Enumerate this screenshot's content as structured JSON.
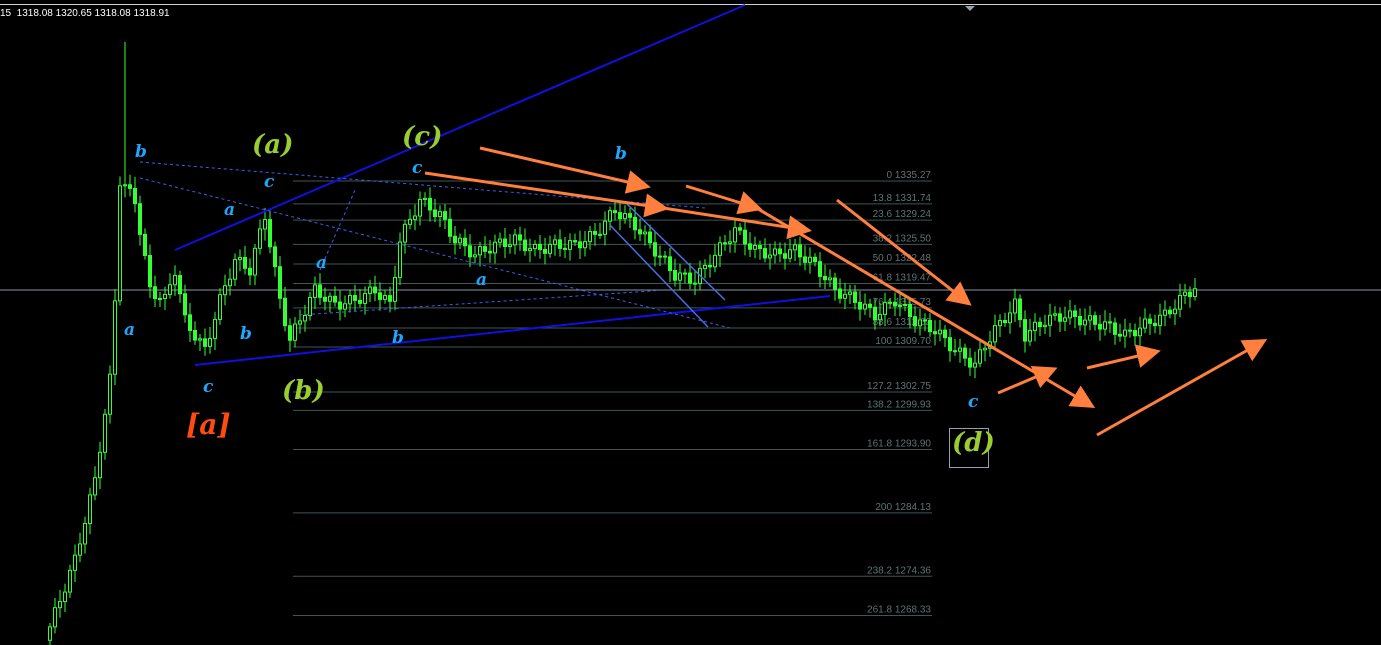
{
  "header": {
    "ohlc": "15  1318.08 1320.65 1318.08 1318.91"
  },
  "colors": {
    "background": "#000000",
    "candle": "#33ff33",
    "fib_line": "#3e5656",
    "trend_line": "#1010e0",
    "channel": "#4a6fe0",
    "arrow": "#ff7f3f",
    "wave_small": "#1ea7ff",
    "wave_mid": "#9acd32",
    "wave_big": "#ff4a12",
    "price_line": "#8a96a6"
  },
  "chart_data": {
    "type": "candlestick",
    "title": "",
    "current_price": 1318.91,
    "price_range": [
      1264,
      1357
    ],
    "closes_by_bar": [
      [
        0,
        1264.5
      ],
      [
        6,
        1276.9
      ],
      [
        10,
        1289.2
      ],
      [
        13,
        1304.6
      ],
      [
        14,
        1316.9
      ],
      [
        15,
        1335.4
      ],
      [
        18,
        1332.3
      ],
      [
        21,
        1318.5
      ],
      [
        24,
        1316.9
      ],
      [
        26,
        1321.6
      ],
      [
        28,
        1313.8
      ],
      [
        32,
        1309.2
      ],
      [
        35,
        1316.9
      ],
      [
        38,
        1323.1
      ],
      [
        41,
        1321.6
      ],
      [
        44,
        1330.0
      ],
      [
        47,
        1316.9
      ],
      [
        49,
        1310.8
      ],
      [
        52,
        1315.4
      ],
      [
        54,
        1318.5
      ],
      [
        58,
        1316.2
      ],
      [
        62,
        1316.9
      ],
      [
        66,
        1318.5
      ],
      [
        69,
        1316.2
      ],
      [
        71,
        1326.2
      ],
      [
        75,
        1332.3
      ],
      [
        79,
        1330.0
      ],
      [
        82,
        1326.2
      ],
      [
        86,
        1323.9
      ],
      [
        90,
        1325.4
      ],
      [
        94,
        1326.2
      ],
      [
        98,
        1324.6
      ],
      [
        102,
        1325.4
      ],
      [
        106,
        1325.4
      ],
      [
        110,
        1327.0
      ],
      [
        114,
        1330.8
      ],
      [
        118,
        1328.5
      ],
      [
        122,
        1324.6
      ],
      [
        126,
        1320.8
      ],
      [
        130,
        1320.0
      ],
      [
        134,
        1323.9
      ],
      [
        138,
        1327.7
      ],
      [
        142,
        1324.6
      ],
      [
        146,
        1323.9
      ],
      [
        150,
        1324.6
      ],
      [
        154,
        1322.3
      ],
      [
        158,
        1318.5
      ],
      [
        162,
        1316.9
      ],
      [
        166,
        1314.6
      ],
      [
        170,
        1316.9
      ],
      [
        174,
        1313.8
      ],
      [
        178,
        1312.3
      ],
      [
        182,
        1309.2
      ],
      [
        186,
        1306.9
      ],
      [
        188,
        1310.0
      ],
      [
        190,
        1312.3
      ],
      [
        194,
        1316.2
      ],
      [
        196,
        1311.5
      ],
      [
        200,
        1313.8
      ],
      [
        204,
        1314.6
      ],
      [
        208,
        1313.8
      ],
      [
        212,
        1313.1
      ],
      [
        216,
        1311.5
      ],
      [
        220,
        1313.1
      ],
      [
        224,
        1314.6
      ],
      [
        228,
        1317.7
      ],
      [
        230,
        1318.9
      ]
    ],
    "spike_high": 1356.7,
    "fibonacci": [
      {
        "level": "0",
        "price": 1335.27
      },
      {
        "level": "13.8",
        "price": 1331.74
      },
      {
        "level": "23.6",
        "price": 1329.24
      },
      {
        "level": "38.2",
        "price": 1325.5
      },
      {
        "level": "50.0",
        "price": 1322.48
      },
      {
        "level": "61.8",
        "price": 1319.47
      },
      {
        "level": "76.4",
        "price": 1315.73
      },
      {
        "level": "88.6",
        "price": 1312.62
      },
      {
        "level": "100",
        "price": 1309.7
      },
      {
        "level": "127.2",
        "price": 1302.75
      },
      {
        "level": "138.2",
        "price": 1299.93
      },
      {
        "level": "161.8",
        "price": 1293.9
      },
      {
        "level": "200",
        "price": 1284.13
      },
      {
        "level": "238.2",
        "price": 1274.36
      },
      {
        "level": "261.8",
        "price": 1268.33
      }
    ]
  },
  "waves": {
    "b1": "b",
    "a1": "a",
    "c1": "c",
    "a2": "a",
    "b2": "b",
    "c2": "c",
    "a3": "a",
    "b3": "b",
    "c3": "c",
    "a4": "a",
    "b4": "b",
    "c4": "c",
    "A": "(a)",
    "B": "(b)",
    "C": "(c)",
    "D": "(d)",
    "bigA": "[a]"
  }
}
